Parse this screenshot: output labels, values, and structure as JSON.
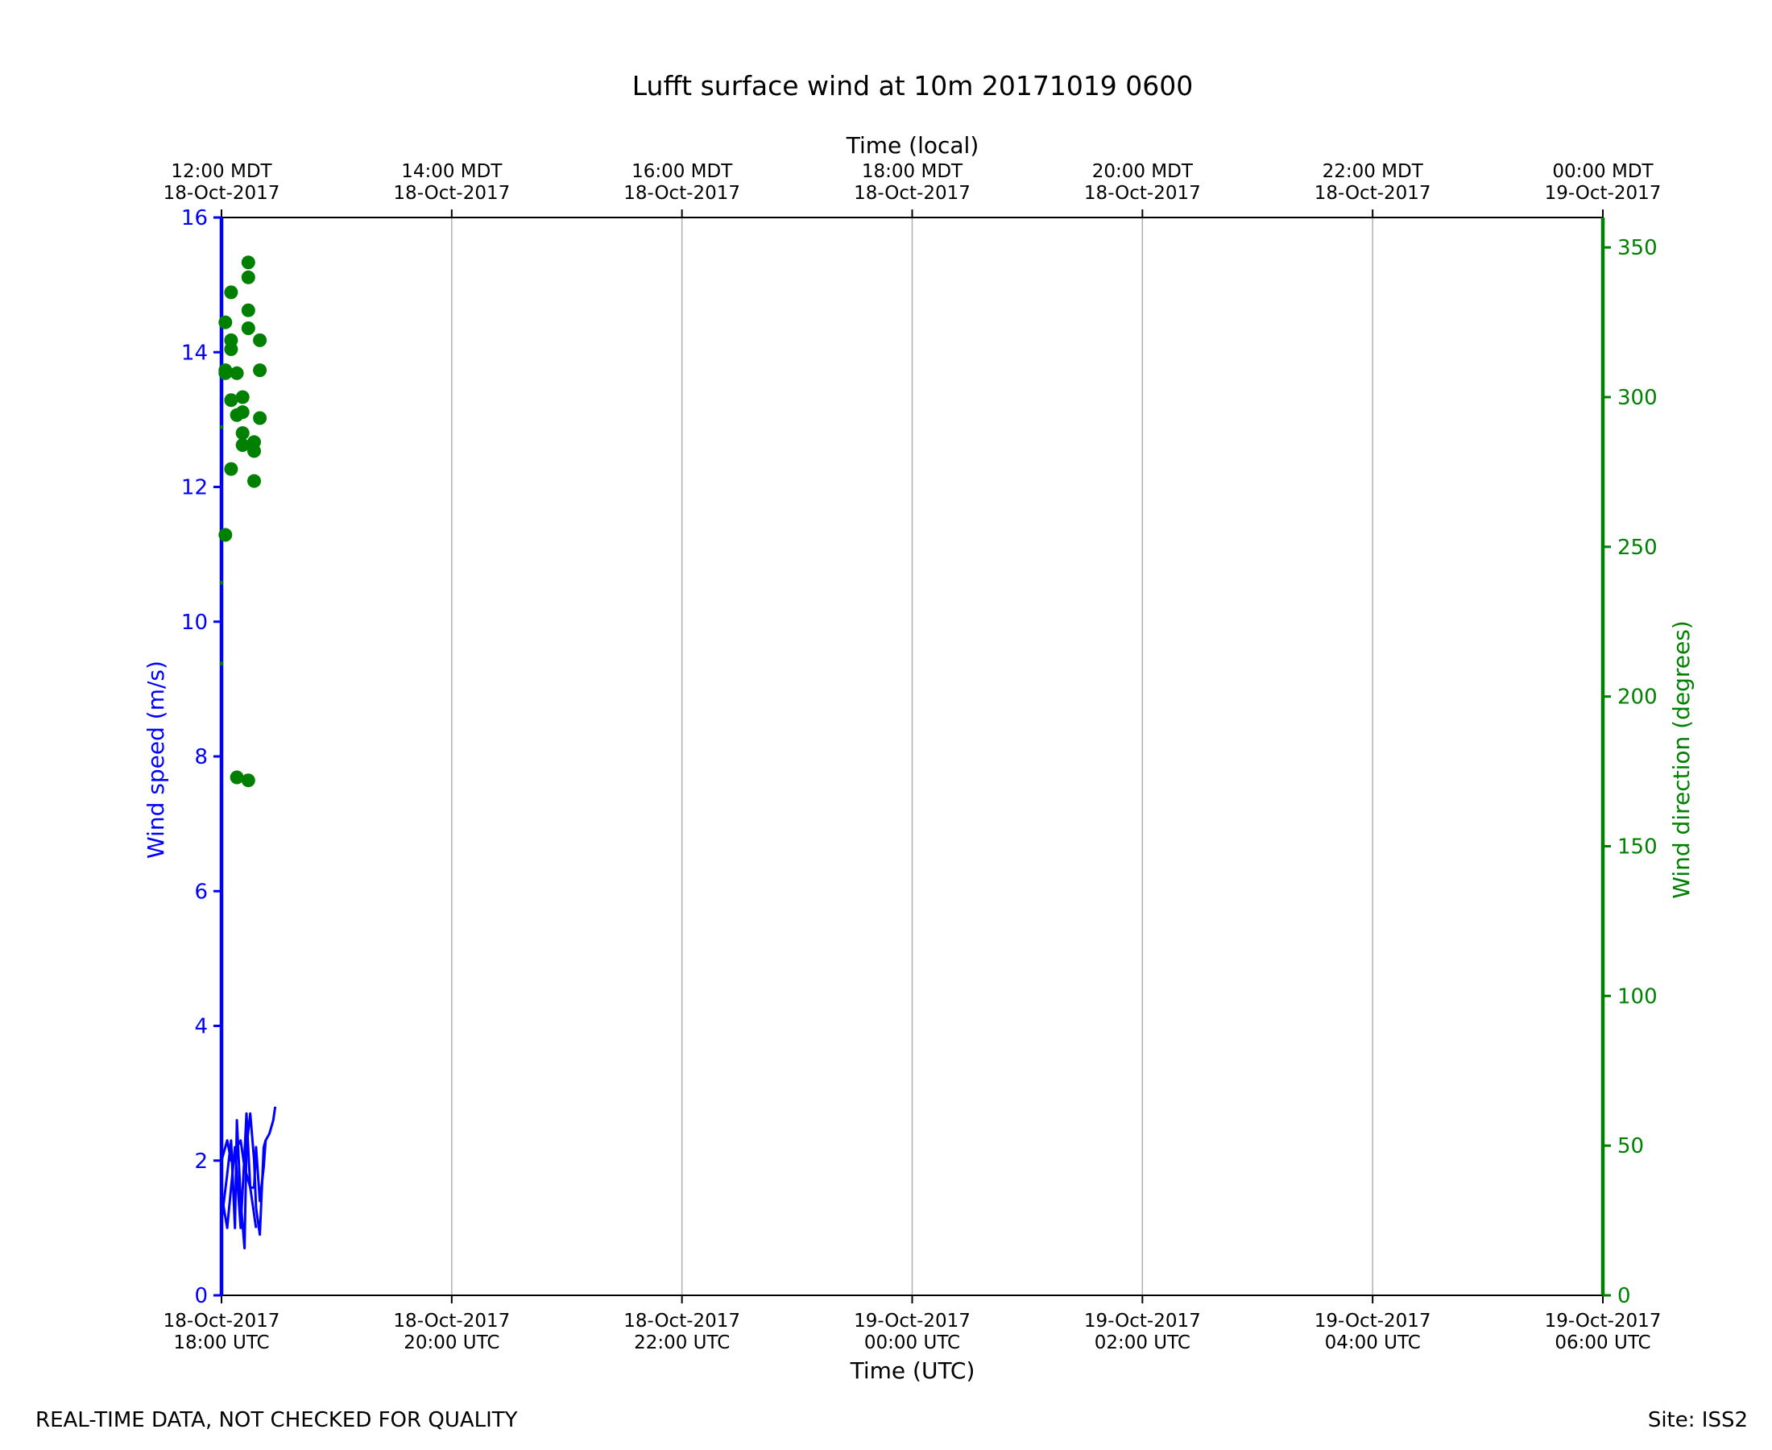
{
  "footer": {
    "quality_note": "REAL-TIME DATA, NOT CHECKED FOR QUALITY",
    "site": "Site: ISS2"
  },
  "colors": {
    "speed": "#0000ff",
    "direction": "#008000",
    "grid": "#b0b0b0",
    "axis": "#000000"
  },
  "chart_data": {
    "type": "line",
    "title": "Lufft surface wind at 10m 20171019 0600",
    "xlabel": "Time (UTC)",
    "x2label": "Time (local)",
    "ylabel": "Wind speed (m/s)",
    "y2label": "Wind direction (degrees)",
    "xlim": [
      "2017-10-18 18:00",
      "2017-10-19 06:00"
    ],
    "ylim": [
      0,
      16
    ],
    "y2lim": [
      0,
      360
    ],
    "grid": true,
    "x_ticks_utc": [
      {
        "l1": "18-Oct-2017",
        "l2": "18:00 UTC"
      },
      {
        "l1": "18-Oct-2017",
        "l2": "20:00 UTC"
      },
      {
        "l1": "18-Oct-2017",
        "l2": "22:00 UTC"
      },
      {
        "l1": "19-Oct-2017",
        "l2": "00:00 UTC"
      },
      {
        "l1": "19-Oct-2017",
        "l2": "02:00 UTC"
      },
      {
        "l1": "19-Oct-2017",
        "l2": "04:00 UTC"
      },
      {
        "l1": "19-Oct-2017",
        "l2": "06:00 UTC"
      }
    ],
    "x_ticks_local": [
      {
        "l1": "12:00 MDT",
        "l2": "18-Oct-2017"
      },
      {
        "l1": "14:00 MDT",
        "l2": "18-Oct-2017"
      },
      {
        "l1": "16:00 MDT",
        "l2": "18-Oct-2017"
      },
      {
        "l1": "18:00 MDT",
        "l2": "18-Oct-2017"
      },
      {
        "l1": "20:00 MDT",
        "l2": "18-Oct-2017"
      },
      {
        "l1": "22:00 MDT",
        "l2": "18-Oct-2017"
      },
      {
        "l1": "00:00 MDT",
        "l2": "19-Oct-2017"
      }
    ],
    "y_ticks": [
      "0",
      "2",
      "4",
      "6",
      "8",
      "10",
      "12",
      "14",
      "16"
    ],
    "y2_ticks": [
      "0",
      "50",
      "100",
      "150",
      "200",
      "250",
      "300",
      "350"
    ],
    "speed_x": [
      "18:00",
      "18:03",
      "18:05",
      "18:07",
      "18:08",
      "18:10",
      "18:12",
      "18:13",
      "18:15",
      "18:17",
      "18:18",
      "18:20",
      "18:22",
      "18:23",
      "18:25",
      "18:27",
      "18:28",
      "18:30",
      "18:32",
      "18:33"
    ],
    "speed_series": [
      {
        "values": [
          1.1,
          1.8,
          2.3,
          1.0,
          2.6,
          1.4,
          0.7,
          2.2,
          2.7,
          2.0,
          1.3,
          0.9,
          2.2,
          2.3,
          null,
          null,
          null,
          null,
          null,
          null
        ]
      },
      {
        "values": [
          2.0,
          2.3,
          2.0,
          2.1,
          2.2,
          2.3,
          1.9,
          1.8,
          1.6,
          1.6,
          2.2,
          1.4,
          1.9,
          2.3,
          2.4,
          2.6,
          2.8,
          null,
          null,
          null
        ]
      },
      {
        "values": [
          1.5,
          1.0,
          1.6,
          2.2,
          1.8,
          1.0,
          2.1,
          2.7,
          1.6,
          1.2,
          1.0,
          null,
          null,
          null,
          null,
          null,
          null,
          null,
          null,
          null
        ]
      }
    ],
    "direction_points": [
      {
        "x": "18:00",
        "y": 290
      },
      {
        "x": "18:00",
        "y": 238
      },
      {
        "x": "18:00",
        "y": 211
      },
      {
        "x": "18:02",
        "y": 325
      },
      {
        "x": "18:02",
        "y": 309
      },
      {
        "x": "18:02",
        "y": 308
      },
      {
        "x": "18:02",
        "y": 254
      },
      {
        "x": "18:05",
        "y": 335
      },
      {
        "x": "18:05",
        "y": 319
      },
      {
        "x": "18:05",
        "y": 316
      },
      {
        "x": "18:05",
        "y": 299
      },
      {
        "x": "18:05",
        "y": 276
      },
      {
        "x": "18:08",
        "y": 308
      },
      {
        "x": "18:08",
        "y": 294
      },
      {
        "x": "18:08",
        "y": 173
      },
      {
        "x": "18:11",
        "y": 300
      },
      {
        "x": "18:11",
        "y": 295
      },
      {
        "x": "18:11",
        "y": 288
      },
      {
        "x": "18:11",
        "y": 284
      },
      {
        "x": "18:14",
        "y": 345
      },
      {
        "x": "18:14",
        "y": 340
      },
      {
        "x": "18:14",
        "y": 329
      },
      {
        "x": "18:14",
        "y": 323
      },
      {
        "x": "18:14",
        "y": 172
      },
      {
        "x": "18:17",
        "y": 285
      },
      {
        "x": "18:17",
        "y": 282
      },
      {
        "x": "18:17",
        "y": 272
      },
      {
        "x": "18:20",
        "y": 319
      },
      {
        "x": "18:20",
        "y": 309
      },
      {
        "x": "18:20",
        "y": 293
      }
    ]
  }
}
